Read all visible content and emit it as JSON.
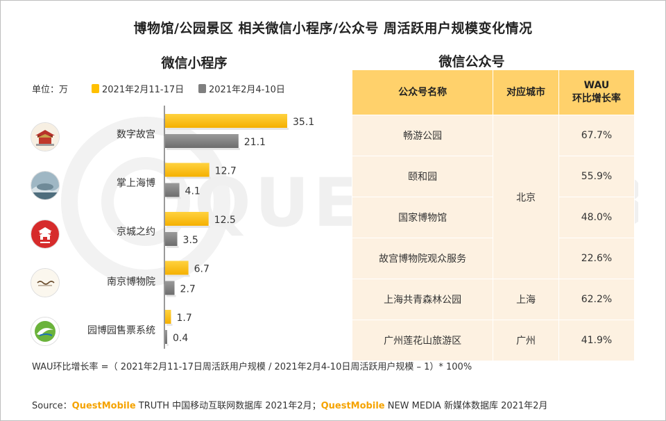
{
  "title": "博物馆/公园景区 相关微信小程序/公众号 周活跃用户规模变化情况",
  "mini_program_title": "微信小程序",
  "official_account_title": "微信公众号",
  "watermark_text": "QUESTMOBILE",
  "colors": {
    "series1": "#ffc000",
    "series2": "#7f7f7f",
    "table_header": "#ffd16b",
    "table_cell": "#fdf1e1",
    "brand": "#f5a300"
  },
  "chart_data": {
    "type": "bar",
    "orientation": "horizontal",
    "title": "微信小程序",
    "unit_label": "单位：万",
    "categories": [
      "数字故宫",
      "掌上海博",
      "京城之约",
      "南京博物院",
      "园博园售票系统"
    ],
    "category_icons": [
      "forbidden-city-logo-icon",
      "shanghai-museum-logo-icon",
      "jingcheng-logo-icon",
      "nanjing-museum-logo-icon",
      "expo-park-logo-icon"
    ],
    "series": [
      {
        "name": "2021年2月11-17日",
        "values": [
          35.1,
          12.7,
          12.5,
          6.7,
          1.7
        ]
      },
      {
        "name": "2021年2月4-10日",
        "values": [
          21.1,
          4.1,
          3.5,
          2.7,
          0.4
        ]
      }
    ],
    "xlim": [
      0,
      40
    ],
    "grid": false,
    "legend_position": "top"
  },
  "official_accounts": {
    "headers": [
      "公众号名称",
      "对应城市",
      "WAU\n环比增长率"
    ],
    "rows": [
      {
        "name": "畅游公园",
        "city": "北京",
        "growth": "67.7%"
      },
      {
        "name": "颐和园",
        "city": "北京",
        "growth": "55.9%"
      },
      {
        "name": "国家博物馆",
        "city": "北京",
        "growth": "48.0%"
      },
      {
        "name": "故宫博物院观众服务",
        "city": "北京",
        "growth": "22.6%"
      },
      {
        "name": "上海共青森林公园",
        "city": "上海",
        "growth": "62.2%"
      },
      {
        "name": "广州莲花山旅游区",
        "city": "广州",
        "growth": "41.9%"
      }
    ],
    "merged_cities": [
      {
        "city": "北京",
        "rowspan": 4
      },
      {
        "city": "上海",
        "rowspan": 1
      },
      {
        "city": "广州",
        "rowspan": 1
      }
    ]
  },
  "formula": "WAU环比增长率 =（ 2021年2月11-17日周活跃用户规模 / 2021年2月4-10日周活跃用户规模 – 1）* 100%",
  "source": {
    "prefix": "Source：",
    "brand1": "QuestMobile",
    "text1": " TRUTH 中国移动互联网数据库 2021年2月；",
    "brand2": "QuestMobile",
    "text2": " NEW MEDIA 新媒体数据库 2021年2月"
  }
}
